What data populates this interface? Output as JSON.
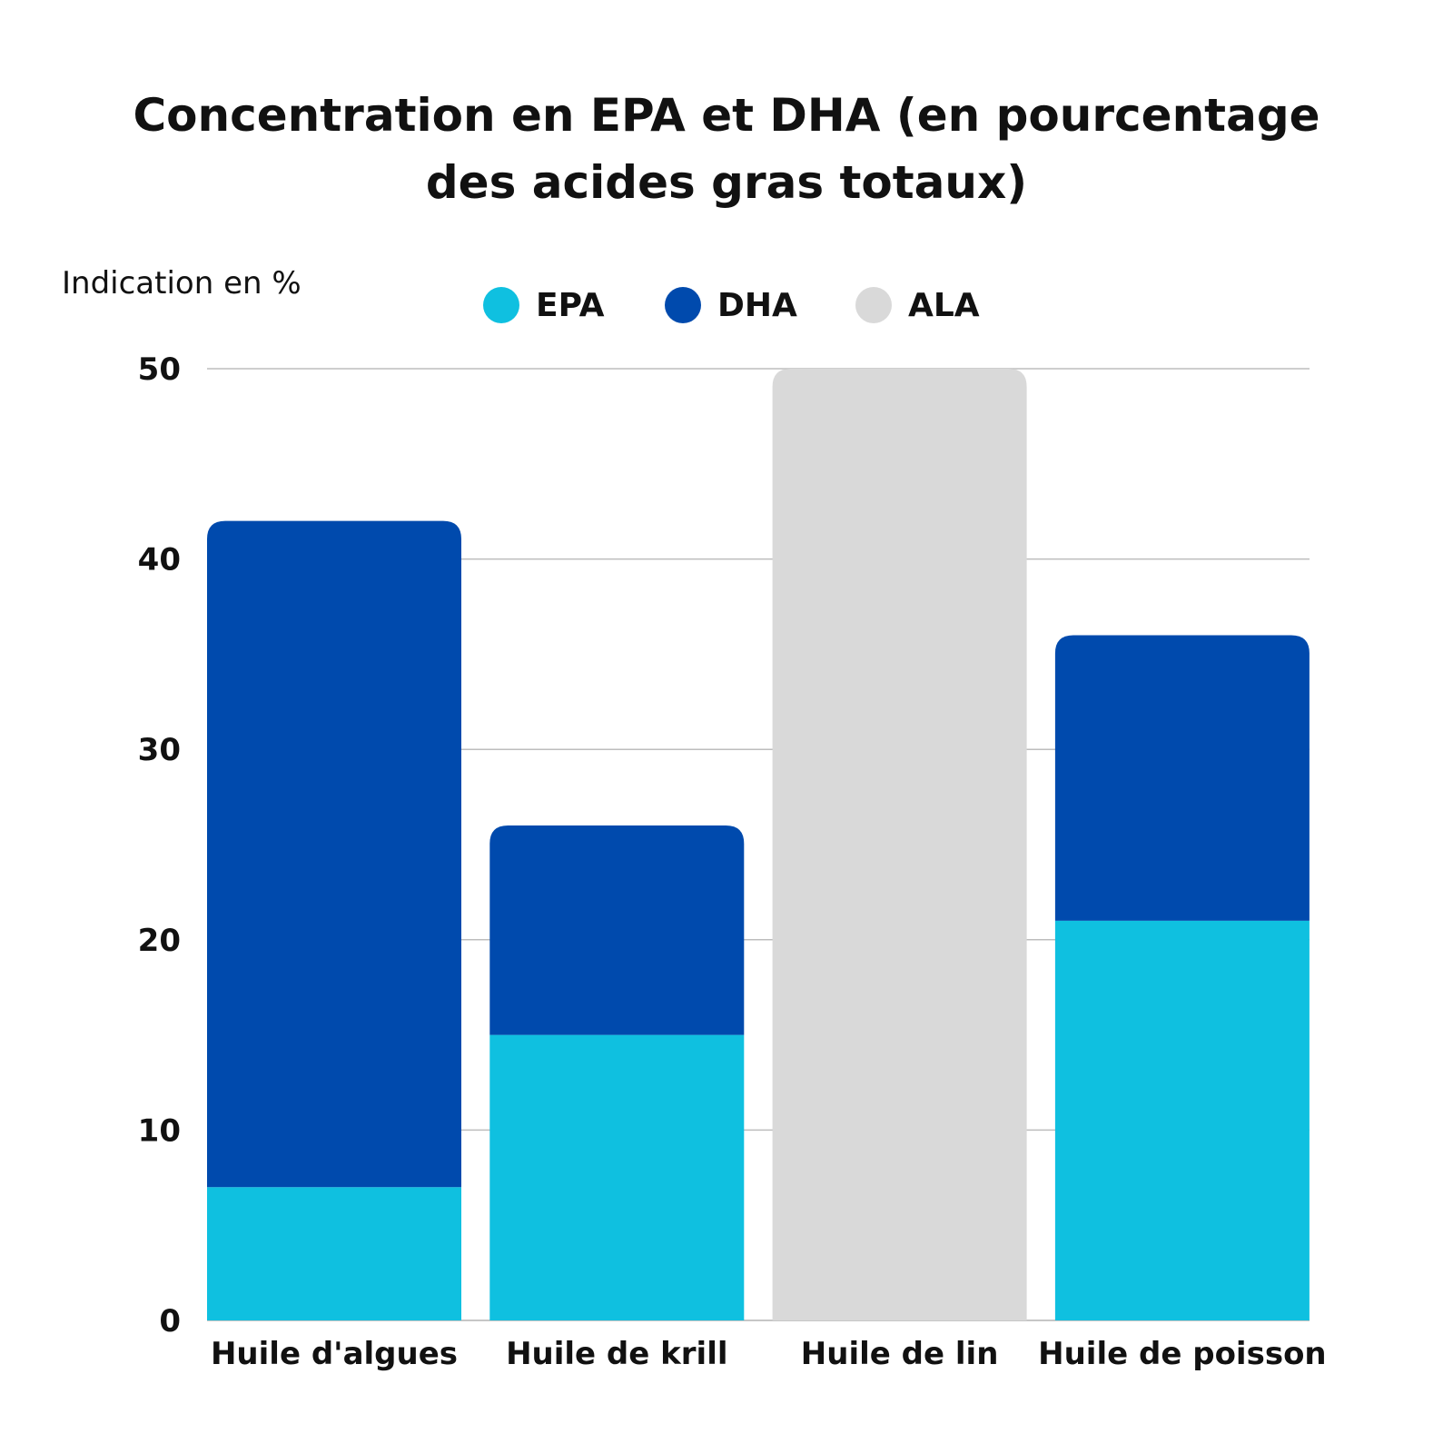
{
  "chart_data": {
    "type": "bar",
    "stacked": true,
    "title": "Concentration en EPA et DHA (en pourcentage des acides gras totaux)",
    "ylabel": "Indication en %",
    "xlabel": "",
    "ylim": [
      0,
      50
    ],
    "yticks": [
      0,
      10,
      20,
      30,
      40,
      50
    ],
    "grid": true,
    "legend_position": "top-center",
    "categories": [
      "Huile d'algues",
      "Huile de krill",
      "Huile de lin",
      "Huile de poisson"
    ],
    "series": [
      {
        "name": "EPA",
        "color": "#0fc0e0",
        "values": [
          7,
          15,
          0,
          21
        ]
      },
      {
        "name": "DHA",
        "color": "#004aad",
        "values": [
          35,
          11,
          0,
          15
        ]
      },
      {
        "name": "ALA",
        "color": "#d9d9d9",
        "values": [
          0,
          0,
          50,
          0
        ]
      }
    ]
  }
}
